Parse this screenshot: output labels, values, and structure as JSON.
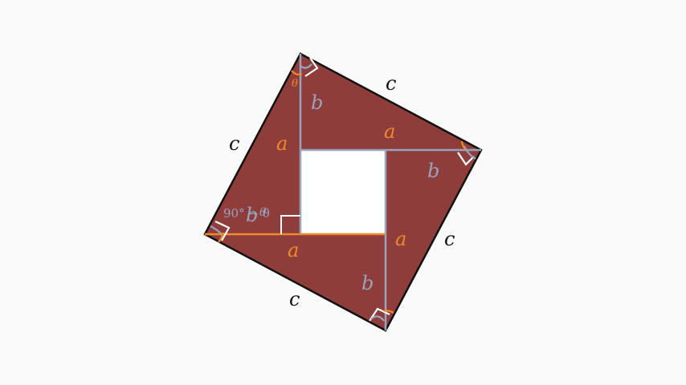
{
  "colors": {
    "background": "#fafafa",
    "triangle_fill": "#8e3d3b",
    "outline": "#111111",
    "leg_a": "#ee8a2c",
    "leg_b": "#9aa3bd",
    "inner_square": "#ffffff"
  },
  "labels": {
    "c": "c",
    "a": "a",
    "b": "b",
    "theta": "θ",
    "ninety_minus_theta": "90° − θ"
  }
}
